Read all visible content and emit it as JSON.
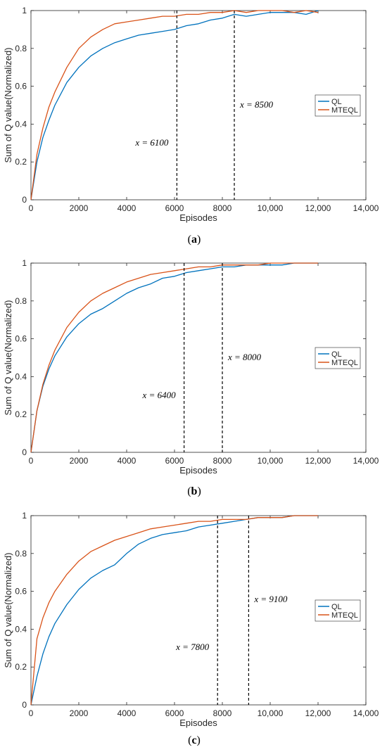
{
  "colors": {
    "ql": "#0072BD",
    "mteql": "#D95319",
    "axis": "#262626",
    "vline": "#000000"
  },
  "chart_data": [
    {
      "type": "line",
      "panel_label": "a",
      "xlabel": "Episodes",
      "ylabel": "Sum of Q value(Normalized)",
      "xlim": [
        0,
        14000
      ],
      "ylim": [
        0,
        1
      ],
      "xticks": [
        "0",
        "2000",
        "4000",
        "6000",
        "8000",
        "10,000",
        "12,000",
        "14,000"
      ],
      "yticks": [
        "0",
        "0.2",
        "0.4",
        "0.6",
        "0.8",
        "1"
      ],
      "legend": {
        "placement": "right",
        "entries": [
          "QL",
          "MTEQL"
        ]
      },
      "vlines": [
        6100,
        8500
      ],
      "annotations": [
        "x = 6100",
        "x = 8500"
      ],
      "series": [
        {
          "name": "QL",
          "x": [
            0,
            250,
            500,
            750,
            1000,
            1500,
            2000,
            2500,
            3000,
            3500,
            4000,
            4500,
            5000,
            5500,
            6000,
            6500,
            7000,
            7500,
            8000,
            8500,
            9000,
            9500,
            10000,
            10500,
            11000,
            11500,
            12000
          ],
          "y": [
            0,
            0.2,
            0.33,
            0.42,
            0.5,
            0.62,
            0.7,
            0.76,
            0.8,
            0.83,
            0.85,
            0.87,
            0.88,
            0.89,
            0.9,
            0.92,
            0.93,
            0.95,
            0.96,
            0.98,
            0.97,
            0.98,
            0.99,
            0.99,
            0.99,
            0.98,
            1.0
          ]
        },
        {
          "name": "MTEQL",
          "x": [
            0,
            250,
            500,
            750,
            1000,
            1500,
            2000,
            2500,
            3000,
            3500,
            4000,
            4500,
            5000,
            5500,
            6000,
            6500,
            7000,
            7500,
            8000,
            8500,
            9000,
            9500,
            10000,
            10500,
            11000,
            11500,
            12000
          ],
          "y": [
            0,
            0.24,
            0.38,
            0.49,
            0.57,
            0.7,
            0.8,
            0.86,
            0.9,
            0.93,
            0.94,
            0.95,
            0.96,
            0.97,
            0.97,
            0.98,
            0.98,
            0.99,
            0.99,
            1.0,
            0.99,
            1.0,
            1.0,
            1.0,
            0.99,
            1.0,
            0.99
          ]
        }
      ]
    },
    {
      "type": "line",
      "panel_label": "b",
      "xlabel": "Episodes",
      "ylabel": "Sum of Q value(Normalized)",
      "xlim": [
        0,
        14000
      ],
      "ylim": [
        0,
        1
      ],
      "xticks": [
        "0",
        "2000",
        "4000",
        "6000",
        "8000",
        "10,000",
        "12,000",
        "14,000"
      ],
      "yticks": [
        "0",
        "0.2",
        "0.4",
        "0.6",
        "0.8",
        "1"
      ],
      "legend": {
        "placement": "right",
        "entries": [
          "QL",
          "MTEQL"
        ]
      },
      "vlines": [
        6400,
        8000
      ],
      "annotations": [
        "x = 6400",
        "x = 8000"
      ],
      "series": [
        {
          "name": "QL",
          "x": [
            0,
            250,
            500,
            750,
            1000,
            1500,
            2000,
            2500,
            3000,
            3500,
            4000,
            4500,
            5000,
            5500,
            6000,
            6500,
            7000,
            7500,
            8000,
            8500,
            9000,
            9500,
            10000,
            10500,
            11000,
            11500,
            12000
          ],
          "y": [
            0,
            0.22,
            0.35,
            0.44,
            0.51,
            0.61,
            0.68,
            0.73,
            0.76,
            0.8,
            0.84,
            0.87,
            0.89,
            0.92,
            0.93,
            0.95,
            0.96,
            0.97,
            0.98,
            0.98,
            0.99,
            0.99,
            0.99,
            0.99,
            1.0,
            1.0,
            1.0
          ]
        },
        {
          "name": "MTEQL",
          "x": [
            0,
            250,
            500,
            750,
            1000,
            1500,
            2000,
            2500,
            3000,
            3500,
            4000,
            4500,
            5000,
            5500,
            6000,
            6500,
            7000,
            7500,
            8000,
            8500,
            9000,
            9500,
            10000,
            10500,
            11000,
            11500,
            12000
          ],
          "y": [
            0,
            0.22,
            0.36,
            0.46,
            0.54,
            0.66,
            0.74,
            0.8,
            0.84,
            0.87,
            0.9,
            0.92,
            0.94,
            0.95,
            0.96,
            0.97,
            0.98,
            0.98,
            0.99,
            0.99,
            0.99,
            0.99,
            1.0,
            1.0,
            1.0,
            1.0,
            1.0
          ]
        }
      ]
    },
    {
      "type": "line",
      "panel_label": "c",
      "xlabel": "Episodes",
      "ylabel": "Sum of Q value(Normalized)",
      "xlim": [
        0,
        14000
      ],
      "ylim": [
        0,
        1
      ],
      "xticks": [
        "0",
        "2000",
        "4000",
        "6000",
        "8000",
        "10,000",
        "12,000",
        "14,000"
      ],
      "yticks": [
        "0",
        "0.2",
        "0.4",
        "0.6",
        "0.8",
        "1"
      ],
      "legend": {
        "placement": "right",
        "entries": [
          "QL",
          "MTEQL"
        ]
      },
      "vlines": [
        7800,
        9100
      ],
      "annotations": [
        "x = 7800",
        "x = 9100"
      ],
      "series": [
        {
          "name": "QL",
          "x": [
            0,
            250,
            500,
            750,
            1000,
            1500,
            2000,
            2500,
            3000,
            3500,
            4000,
            4500,
            5000,
            5500,
            6000,
            6500,
            7000,
            7500,
            8000,
            8500,
            9000,
            9500,
            10000,
            10500,
            11000,
            11500,
            12000
          ],
          "y": [
            0,
            0.15,
            0.27,
            0.36,
            0.43,
            0.53,
            0.61,
            0.67,
            0.71,
            0.74,
            0.8,
            0.85,
            0.88,
            0.9,
            0.91,
            0.92,
            0.94,
            0.95,
            0.96,
            0.97,
            0.98,
            0.99,
            0.99,
            0.99,
            1.0,
            1.0,
            1.0
          ]
        },
        {
          "name": "MTEQL",
          "x": [
            0,
            250,
            500,
            750,
            1000,
            1500,
            2000,
            2500,
            3000,
            3500,
            4000,
            4500,
            5000,
            5500,
            6000,
            6500,
            7000,
            7500,
            8000,
            8500,
            9000,
            9500,
            10000,
            10500,
            11000,
            11500,
            12000
          ],
          "y": [
            0,
            0.35,
            0.46,
            0.54,
            0.6,
            0.69,
            0.76,
            0.81,
            0.84,
            0.87,
            0.89,
            0.91,
            0.93,
            0.94,
            0.95,
            0.96,
            0.97,
            0.97,
            0.98,
            0.98,
            0.98,
            0.99,
            0.99,
            0.99,
            1.0,
            1.0,
            1.0
          ]
        }
      ]
    }
  ]
}
